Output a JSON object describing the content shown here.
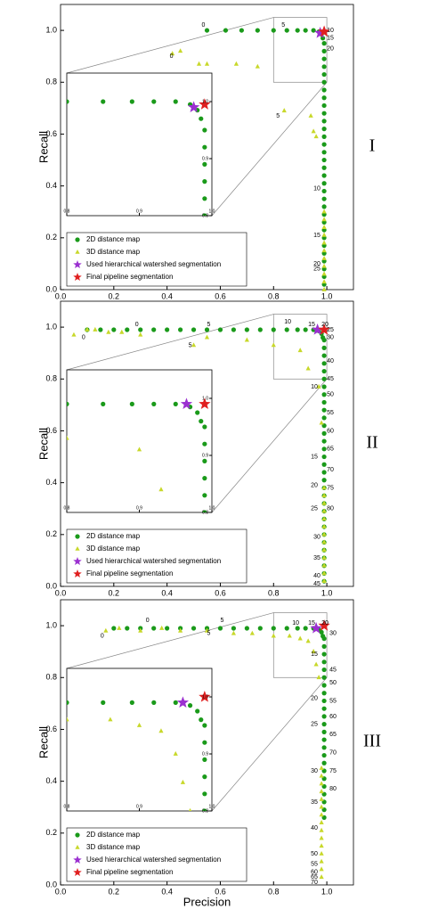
{
  "chart_data": [
    {
      "type": "scatter",
      "panel_label": "I",
      "ylabel": "Recall",
      "xlim": [
        0,
        1.1
      ],
      "ylim": [
        0,
        1.1
      ],
      "xticks": [
        {
          "value": 0,
          "label": "0.0"
        },
        0.2,
        0.4,
        0.6,
        0.8,
        {
          "value": 1,
          "label": "1.0"
        }
      ],
      "yticks": [
        {
          "value": 0,
          "label": "0.0"
        },
        0.2,
        0.4,
        0.6,
        0.8,
        {
          "value": 1,
          "label": "1.0"
        }
      ],
      "legend": "lower left",
      "inset": {
        "xlim": [
          0.8,
          1.0
        ],
        "ylim": [
          0.8,
          1.05
        ],
        "xticks": [
          0.8,
          0.9,
          {
            "value": 1,
            "label": "1.0"
          }
        ],
        "yticks": [
          0.8,
          0.9,
          {
            "value": 1,
            "label": "1.0"
          }
        ]
      },
      "series": [
        {
          "name": "2D distance map",
          "color": "#1a9a1a",
          "marker": "circle",
          "x": [
            0.55,
            0.62,
            0.68,
            0.74,
            0.8,
            0.85,
            0.89,
            0.92,
            0.95,
            0.97,
            0.98,
            0.985,
            0.99,
            0.99,
            0.99,
            0.99,
            0.99,
            0.99,
            0.99,
            0.99,
            0.99,
            0.99,
            0.99,
            0.99,
            0.99,
            0.99,
            0.99,
            0.99,
            0.99,
            0.99,
            0.99,
            0.99,
            0.99,
            0.99,
            0.99,
            0.99,
            0.99,
            0.99,
            0.99,
            0.99,
            0.99,
            0.99,
            0.99,
            0.99
          ],
          "y": [
            1,
            1,
            1,
            1,
            1,
            1,
            1,
            1,
            1,
            0.995,
            0.985,
            0.97,
            0.95,
            0.92,
            0.89,
            0.86,
            0.83,
            0.8,
            0.77,
            0.74,
            0.71,
            0.68,
            0.65,
            0.62,
            0.59,
            0.56,
            0.53,
            0.5,
            0.47,
            0.44,
            0.41,
            0.38,
            0.35,
            0.32,
            0.29,
            0.26,
            0.23,
            0.2,
            0.17,
            0.14,
            0.11,
            0.08,
            0.05,
            0.02
          ]
        },
        {
          "name": "3D distance map",
          "color": "#c8d82a",
          "marker": "triangle",
          "x": [
            0.42,
            0.45,
            0.52,
            0.55,
            0.66,
            0.74,
            0.84,
            0.94,
            0.95,
            0.96,
            0.99,
            0.99,
            0.99,
            0.99,
            0.99,
            0.99,
            0.99,
            0.99,
            0.99,
            0.99,
            0.99
          ],
          "y": [
            0.91,
            0.92,
            0.87,
            0.87,
            0.87,
            0.86,
            0.69,
            0.67,
            0.61,
            0.59,
            0.3,
            0.27,
            0.24,
            0.21,
            0.18,
            0.15,
            0.12,
            0.09,
            0.06,
            0.03,
            0.0
          ]
        },
        {
          "name": "Used hierarchical watershed segmentation",
          "color": "#9b30d0",
          "marker": "star",
          "x": [
            0.975
          ],
          "y": [
            0.99
          ]
        },
        {
          "name": "Final pipeline segmentation",
          "color": "#e02020",
          "marker": "star",
          "x": [
            0.99
          ],
          "y": [
            0.995
          ]
        }
      ],
      "annotations": [
        {
          "text": "0",
          "x": 0.53,
          "y": 1.02
        },
        {
          "text": "0",
          "x": 0.41,
          "y": 0.9
        },
        {
          "text": "5",
          "x": 0.83,
          "y": 1.02
        },
        {
          "text": "5",
          "x": 0.81,
          "y": 0.67
        },
        {
          "text": "10",
          "x": 1.0,
          "y": 1.0
        },
        {
          "text": "15",
          "x": 1.0,
          "y": 0.97
        },
        {
          "text": "20",
          "x": 1.0,
          "y": 0.93
        },
        {
          "text": "10",
          "x": 0.95,
          "y": 0.39
        },
        {
          "text": "15",
          "x": 0.95,
          "y": 0.21
        },
        {
          "text": "20",
          "x": 0.95,
          "y": 0.1
        },
        {
          "text": "25",
          "x": 0.95,
          "y": 0.08
        }
      ]
    },
    {
      "type": "scatter",
      "panel_label": "II",
      "ylabel": "Recall",
      "xlim": [
        0,
        1.1
      ],
      "ylim": [
        0,
        1.1
      ],
      "xticks": [
        {
          "value": 0,
          "label": "0.0"
        },
        0.2,
        0.4,
        0.6,
        0.8,
        {
          "value": 1,
          "label": "1.0"
        }
      ],
      "yticks": [
        {
          "value": 0,
          "label": "0.0"
        },
        0.2,
        0.4,
        0.6,
        0.8,
        {
          "value": 1,
          "label": "1.0"
        }
      ],
      "legend": "lower left",
      "inset": {
        "xlim": [
          0.8,
          1.0
        ],
        "ylim": [
          0.8,
          1.05
        ],
        "xticks": [
          0.8,
          0.9,
          {
            "value": 1,
            "label": "1.0"
          }
        ],
        "yticks": [
          0.8,
          0.9,
          {
            "value": 1,
            "label": "1.0"
          }
        ]
      },
      "series": [
        {
          "name": "2D distance map",
          "color": "#1a9a1a",
          "marker": "circle",
          "x": [
            0.1,
            0.15,
            0.2,
            0.25,
            0.3,
            0.35,
            0.4,
            0.45,
            0.5,
            0.55,
            0.6,
            0.65,
            0.7,
            0.75,
            0.8,
            0.85,
            0.89,
            0.92,
            0.95,
            0.97,
            0.98,
            0.985,
            0.99,
            0.99,
            0.99,
            0.99,
            0.99,
            0.99,
            0.99,
            0.99,
            0.99,
            0.99,
            0.99,
            0.99,
            0.99,
            0.99,
            0.99,
            0.99,
            0.99,
            0.99,
            0.99,
            0.99,
            0.99,
            0.99,
            0.99,
            0.99,
            0.99,
            0.99,
            0.99,
            0.99,
            0.99,
            0.99,
            0.99,
            0.99
          ],
          "y": [
            0.99,
            0.99,
            0.99,
            0.99,
            0.99,
            0.99,
            0.99,
            0.99,
            0.99,
            0.99,
            0.99,
            0.99,
            0.99,
            0.99,
            0.99,
            0.99,
            0.99,
            0.99,
            0.99,
            0.985,
            0.975,
            0.96,
            0.95,
            0.92,
            0.89,
            0.86,
            0.83,
            0.8,
            0.77,
            0.74,
            0.71,
            0.68,
            0.65,
            0.62,
            0.59,
            0.56,
            0.53,
            0.5,
            0.47,
            0.44,
            0.41,
            0.38,
            0.35,
            0.32,
            0.29,
            0.26,
            0.23,
            0.2,
            0.17,
            0.14,
            0.11,
            0.08,
            0.05,
            0.02
          ]
        },
        {
          "name": "3D distance map",
          "color": "#c8d82a",
          "marker": "triangle",
          "x": [
            0.05,
            0.1,
            0.13,
            0.18,
            0.23,
            0.3,
            0.5,
            0.55,
            0.7,
            0.8,
            0.9,
            0.93,
            0.97,
            0.98,
            0.99,
            0.99,
            0.99,
            0.99,
            0.99,
            0.99,
            0.99,
            0.99,
            0.99,
            0.99,
            0.99,
            0.99,
            0.99
          ],
          "y": [
            0.97,
            0.99,
            0.99,
            0.98,
            0.98,
            0.97,
            0.93,
            0.96,
            0.95,
            0.93,
            0.91,
            0.84,
            0.77,
            0.63,
            0.38,
            0.35,
            0.32,
            0.29,
            0.26,
            0.23,
            0.2,
            0.17,
            0.14,
            0.11,
            0.08,
            0.05,
            0.02
          ]
        },
        {
          "name": "Used hierarchical watershed segmentation",
          "color": "#9b30d0",
          "marker": "star",
          "x": [
            0.965
          ],
          "y": [
            0.99
          ]
        },
        {
          "name": "Final pipeline segmentation",
          "color": "#e02020",
          "marker": "star",
          "x": [
            0.99
          ],
          "y": [
            0.99
          ]
        }
      ],
      "annotations": [
        {
          "text": "0",
          "x": 0.28,
          "y": 1.01
        },
        {
          "text": "0",
          "x": 0.08,
          "y": 0.96
        },
        {
          "text": "5",
          "x": 0.55,
          "y": 1.01
        },
        {
          "text": "5",
          "x": 0.48,
          "y": 0.93
        },
        {
          "text": "10",
          "x": 0.84,
          "y": 1.02
        },
        {
          "text": "15",
          "x": 0.93,
          "y": 1.01
        },
        {
          "text": "20",
          "x": 0.98,
          "y": 1.01
        },
        {
          "text": "25",
          "x": 1.0,
          "y": 0.99
        },
        {
          "text": "30",
          "x": 1.0,
          "y": 0.96
        },
        {
          "text": "40",
          "x": 1.0,
          "y": 0.87
        },
        {
          "text": "45",
          "x": 1.0,
          "y": 0.8
        },
        {
          "text": "50",
          "x": 1.0,
          "y": 0.74
        },
        {
          "text": "55",
          "x": 1.0,
          "y": 0.67
        },
        {
          "text": "60",
          "x": 1.0,
          "y": 0.6
        },
        {
          "text": "65",
          "x": 1.0,
          "y": 0.53
        },
        {
          "text": "70",
          "x": 1.0,
          "y": 0.45
        },
        {
          "text": "75",
          "x": 1.0,
          "y": 0.38
        },
        {
          "text": "80",
          "x": 1.0,
          "y": 0.3
        },
        {
          "text": "10",
          "x": 0.94,
          "y": 0.77
        },
        {
          "text": "15",
          "x": 0.94,
          "y": 0.5
        },
        {
          "text": "20",
          "x": 0.94,
          "y": 0.39
        },
        {
          "text": "25",
          "x": 0.94,
          "y": 0.3
        },
        {
          "text": "30",
          "x": 0.95,
          "y": 0.19
        },
        {
          "text": "35",
          "x": 0.95,
          "y": 0.11
        },
        {
          "text": "40",
          "x": 0.95,
          "y": 0.04
        },
        {
          "text": "45",
          "x": 0.95,
          "y": 0.01
        }
      ]
    },
    {
      "type": "scatter",
      "panel_label": "III",
      "ylabel": "Recall",
      "xlabel": "Precision",
      "xlim": [
        0,
        1.1
      ],
      "ylim": [
        0,
        1.1
      ],
      "xticks": [
        {
          "value": 0,
          "label": "0.0"
        },
        0.2,
        0.4,
        0.6,
        0.8,
        {
          "value": 1,
          "label": "1.0"
        }
      ],
      "yticks": [
        {
          "value": 0,
          "label": "0.0"
        },
        0.2,
        0.4,
        0.6,
        0.8,
        {
          "value": 1,
          "label": "1.0"
        }
      ],
      "legend": "lower left",
      "inset": {
        "xlim": [
          0.8,
          1.0
        ],
        "ylim": [
          0.8,
          1.05
        ],
        "xticks": [
          0.8,
          0.9,
          {
            "value": 1,
            "label": "1.0"
          }
        ],
        "yticks": [
          0.8,
          0.9,
          {
            "value": 1,
            "label": "1.0"
          }
        ]
      },
      "series": [
        {
          "name": "2D distance map",
          "color": "#1a9a1a",
          "marker": "circle",
          "x": [
            0.2,
            0.25,
            0.3,
            0.35,
            0.4,
            0.45,
            0.5,
            0.55,
            0.6,
            0.65,
            0.7,
            0.75,
            0.8,
            0.85,
            0.89,
            0.92,
            0.95,
            0.97,
            0.98,
            0.985,
            0.99,
            0.99,
            0.99,
            0.99,
            0.99,
            0.99,
            0.99,
            0.99,
            0.99,
            0.99,
            0.99,
            0.99,
            0.99,
            0.99,
            0.99,
            0.99,
            0.99,
            0.99,
            0.99,
            0.99,
            0.99,
            0.99,
            0.99,
            0.99
          ],
          "y": [
            0.99,
            0.99,
            0.99,
            0.99,
            0.99,
            0.99,
            0.99,
            0.99,
            0.99,
            0.99,
            0.99,
            0.99,
            0.99,
            0.99,
            0.99,
            0.99,
            0.99,
            0.985,
            0.975,
            0.96,
            0.95,
            0.92,
            0.89,
            0.86,
            0.83,
            0.8,
            0.77,
            0.74,
            0.71,
            0.68,
            0.65,
            0.62,
            0.59,
            0.56,
            0.53,
            0.5,
            0.47,
            0.44,
            0.41,
            0.38,
            0.35,
            0.32,
            0.29,
            0.26
          ]
        },
        {
          "name": "3D distance map",
          "color": "#c8d82a",
          "marker": "triangle",
          "x": [
            0.17,
            0.22,
            0.3,
            0.38,
            0.45,
            0.55,
            0.65,
            0.72,
            0.8,
            0.86,
            0.9,
            0.93,
            0.95,
            0.96,
            0.97,
            0.98,
            0.98,
            0.98,
            0.98,
            0.98,
            0.98,
            0.98,
            0.98,
            0.98,
            0.98,
            0.98,
            0.98,
            0.98,
            0.98,
            0.98
          ],
          "y": [
            0.98,
            0.99,
            0.98,
            0.99,
            0.98,
            0.98,
            0.97,
            0.97,
            0.96,
            0.96,
            0.95,
            0.94,
            0.9,
            0.85,
            0.8,
            0.45,
            0.42,
            0.39,
            0.36,
            0.33,
            0.3,
            0.27,
            0.24,
            0.21,
            0.18,
            0.15,
            0.12,
            0.09,
            0.06,
            0.03
          ]
        },
        {
          "name": "Used hierarchical watershed segmentation",
          "color": "#9b30d0",
          "marker": "star",
          "x": [
            0.96
          ],
          "y": [
            0.99
          ]
        },
        {
          "name": "Final pipeline segmentation",
          "color": "#e02020",
          "marker": "star",
          "x": [
            0.99
          ],
          "y": [
            1.0
          ]
        }
      ],
      "annotations": [
        {
          "text": "0",
          "x": 0.32,
          "y": 1.02
        },
        {
          "text": "0",
          "x": 0.15,
          "y": 0.96
        },
        {
          "text": "5",
          "x": 0.6,
          "y": 1.02
        },
        {
          "text": "5",
          "x": 0.55,
          "y": 0.97
        },
        {
          "text": "10",
          "x": 0.87,
          "y": 1.01
        },
        {
          "text": "15",
          "x": 0.93,
          "y": 1.01
        },
        {
          "text": "20",
          "x": 0.98,
          "y": 1.01
        },
        {
          "text": "30",
          "x": 1.01,
          "y": 0.97
        },
        {
          "text": "45",
          "x": 1.01,
          "y": 0.83
        },
        {
          "text": "50",
          "x": 1.01,
          "y": 0.78
        },
        {
          "text": "55",
          "x": 1.01,
          "y": 0.71
        },
        {
          "text": "60",
          "x": 1.01,
          "y": 0.65
        },
        {
          "text": "65",
          "x": 1.01,
          "y": 0.58
        },
        {
          "text": "70",
          "x": 1.01,
          "y": 0.51
        },
        {
          "text": "75",
          "x": 1.01,
          "y": 0.44
        },
        {
          "text": "80",
          "x": 1.01,
          "y": 0.37
        },
        {
          "text": "15",
          "x": 0.94,
          "y": 0.89
        },
        {
          "text": "20",
          "x": 0.94,
          "y": 0.72
        },
        {
          "text": "25",
          "x": 0.94,
          "y": 0.62
        },
        {
          "text": "30",
          "x": 0.94,
          "y": 0.44
        },
        {
          "text": "35",
          "x": 0.94,
          "y": 0.32
        },
        {
          "text": "40",
          "x": 0.94,
          "y": 0.22
        },
        {
          "text": "50",
          "x": 0.94,
          "y": 0.12
        },
        {
          "text": "55",
          "x": 0.94,
          "y": 0.08
        },
        {
          "text": "60",
          "x": 0.94,
          "y": 0.05
        },
        {
          "text": "65",
          "x": 0.94,
          "y": 0.03
        },
        {
          "text": "70",
          "x": 0.94,
          "y": 0.01
        }
      ]
    }
  ]
}
